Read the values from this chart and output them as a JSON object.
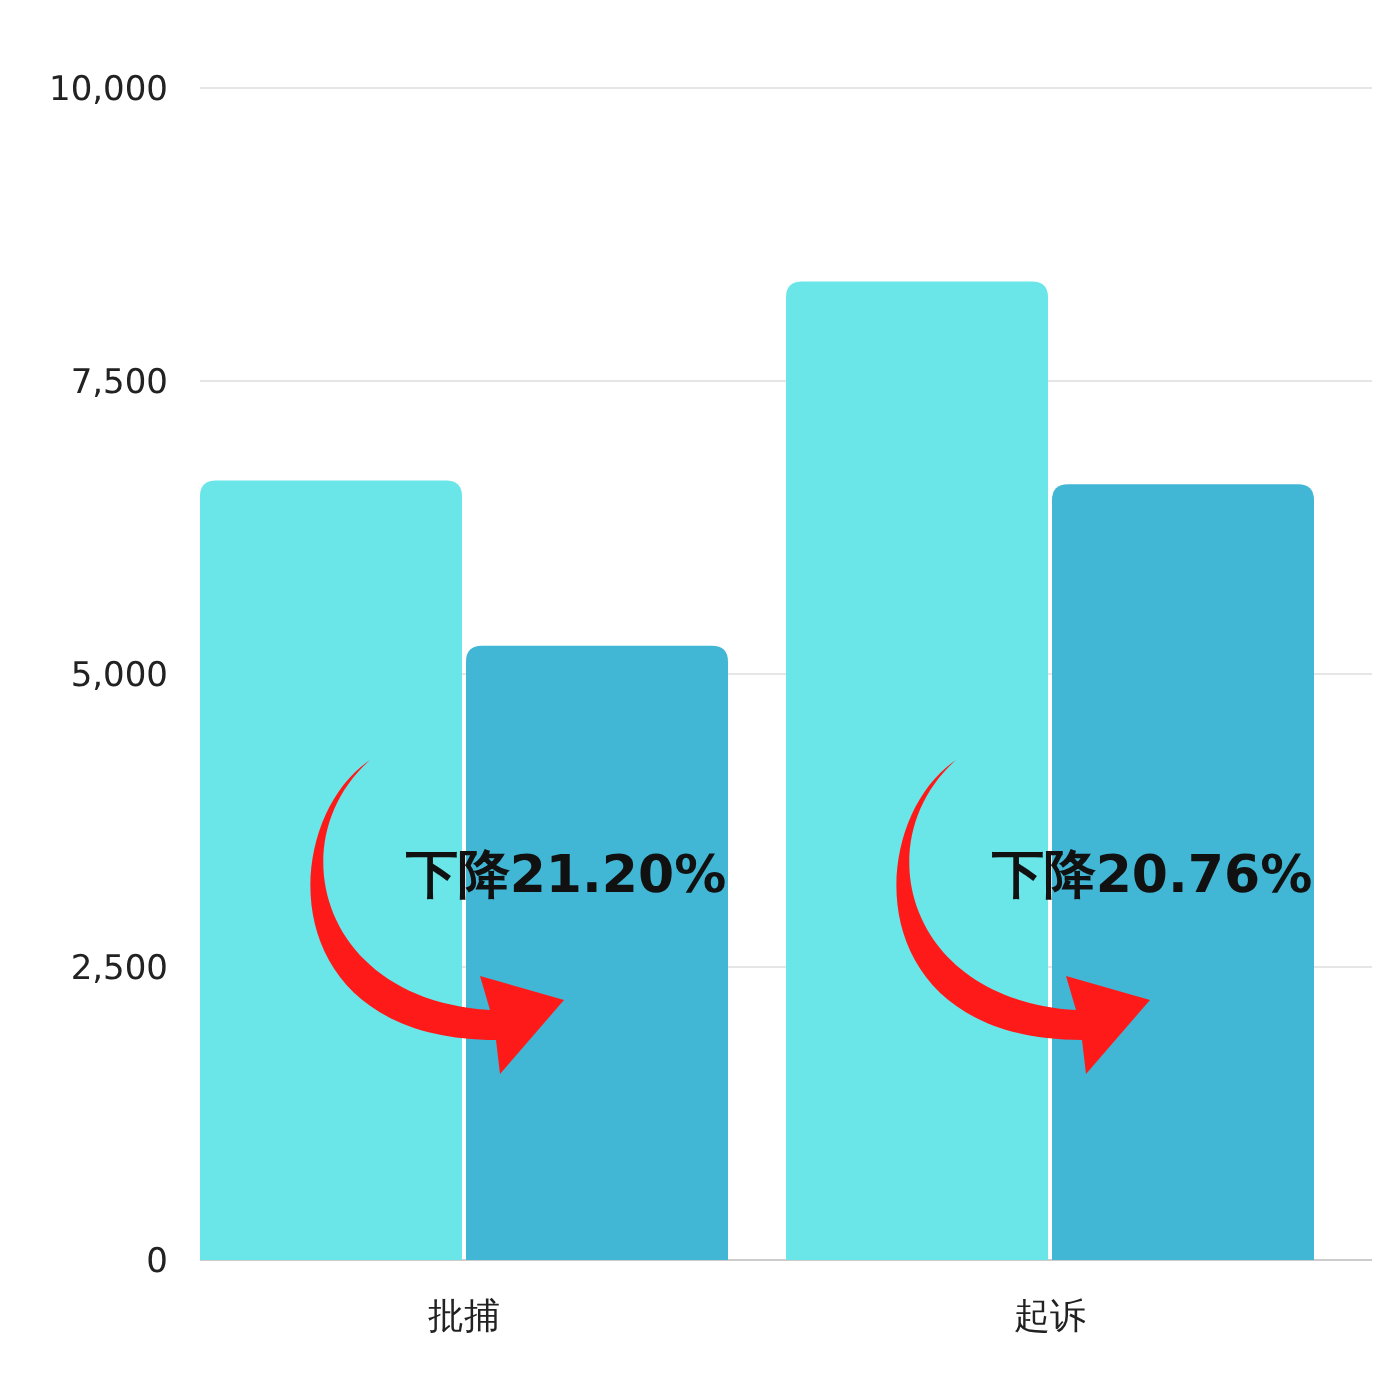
{
  "chart_data": {
    "type": "bar",
    "categories": [
      "批捕",
      "起诉"
    ],
    "series": [
      {
        "color": "#6ae6e8",
        "values": [
          6650,
          8350
        ]
      },
      {
        "color": "#42b7d5",
        "values": [
          5240,
          6620
        ]
      }
    ],
    "ylim": [
      0,
      10000
    ],
    "yticks": [
      {
        "value": 0,
        "label": "0"
      },
      {
        "value": 2500,
        "label": "2,500"
      },
      {
        "value": 5000,
        "label": "5,000"
      },
      {
        "value": 7500,
        "label": "7,500"
      },
      {
        "value": 10000,
        "label": "10,000"
      }
    ],
    "grid": "y",
    "annotations": [
      "下降21.20%",
      "下降20.76%"
    ]
  }
}
